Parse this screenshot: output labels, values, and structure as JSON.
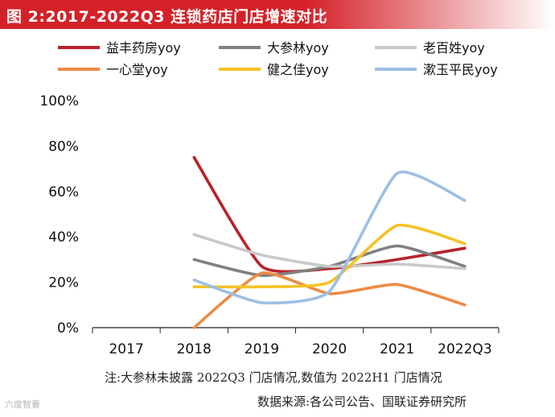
{
  "title": "图 2:2017-2022Q3 连锁药店门店增速对比",
  "note": "注:大参林未披露 2022Q3 门店情况,数值为 2022H1 门店情况",
  "source": "数据来源:各公司公告、国联证券研究所",
  "watermark": "六度智囊",
  "colors": {
    "title_bar": "#d42128",
    "title_fade": "#ffffff",
    "axis": "#222222"
  },
  "chart_data": {
    "type": "line",
    "title": "",
    "xlabel": "",
    "ylabel": "",
    "categories": [
      "2017",
      "2018",
      "2019",
      "2020",
      "2021",
      "2022Q3"
    ],
    "ylim": [
      0,
      100
    ],
    "yticks": [
      0,
      20,
      40,
      60,
      80,
      100
    ],
    "ytick_labels": [
      "0%",
      "20%",
      "40%",
      "60%",
      "80%",
      "100%"
    ],
    "legend_position": "top",
    "series": [
      {
        "name": "益丰药房yoy",
        "color": "#b8212a",
        "values": [
          null,
          75,
          27,
          26,
          30,
          35
        ]
      },
      {
        "name": "大参林yoy",
        "color": "#808080",
        "values": [
          null,
          30,
          23,
          27,
          36,
          27
        ]
      },
      {
        "name": "老百姓yoy",
        "color": "#c9c9c9",
        "values": [
          null,
          41,
          32,
          27,
          28,
          26
        ]
      },
      {
        "name": "一心堂yoy",
        "color": "#ed8b45",
        "values": [
          null,
          0,
          24,
          15,
          19,
          10
        ]
      },
      {
        "name": "健之佳yoy",
        "color": "#f5c226",
        "values": [
          null,
          18,
          18,
          20,
          45,
          37
        ]
      },
      {
        "name": "漱玉平民yoy",
        "color": "#9dbfe3",
        "values": [
          null,
          21,
          11,
          16,
          68,
          56
        ]
      }
    ]
  }
}
